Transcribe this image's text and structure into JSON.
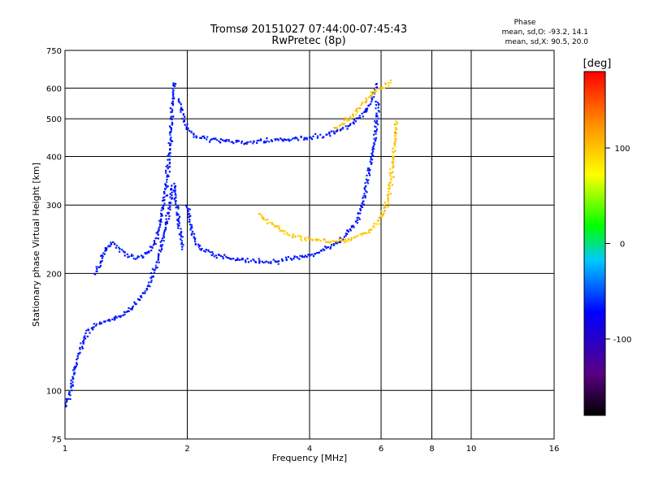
{
  "chart_data": {
    "type": "scatter",
    "title": "Tromsø 20151027 07:44:00-07:45:43",
    "subtitle": "RwPretec (8p)",
    "xlabel": "Frequency [MHz]",
    "ylabel": "Stationary phase Virtual Height [km]",
    "x_scale": "log",
    "y_scale": "log",
    "xlim": [
      1,
      16
    ],
    "ylim": [
      75,
      750
    ],
    "x_ticks": [
      1,
      2,
      4,
      6,
      8,
      10,
      16
    ],
    "y_ticks": [
      75,
      100,
      200,
      300,
      400,
      500,
      600,
      750
    ],
    "grid": true,
    "phase_box": {
      "title": "Phase",
      "line1": "mean, sd,O: -93.2, 14.1",
      "line2": "mean, sd,X:  90.5, 20.0"
    },
    "colorbar": {
      "label": "[deg]",
      "ticks": [
        "100",
        "0",
        "-100"
      ],
      "tick_values": [
        100,
        0,
        -100
      ],
      "range": [
        -180,
        180
      ],
      "colors": [
        "#000000",
        "#5a0082",
        "#0000ff",
        "#00c8ff",
        "#00ff00",
        "#ffff00",
        "#ff8c00",
        "#ff0000"
      ]
    },
    "series": [
      {
        "name": "O",
        "mean_deg": -93.2,
        "sd_deg": 14.1,
        "traces": [
          {
            "x": [
              1.18,
              1.22,
              1.25,
              1.3,
              1.35,
              1.4,
              1.45,
              1.5,
              1.55,
              1.6,
              1.65,
              1.7,
              1.75,
              1.8,
              1.84,
              1.86
            ],
            "y": [
              200,
              210,
              230,
              240,
              232,
              225,
              222,
              220,
              222,
              226,
              235,
              260,
              300,
              380,
              550,
              630
            ]
          },
          {
            "x": [
              1.9,
              2.0,
              2.1,
              2.2,
              2.4,
              2.6,
              2.8,
              3.0,
              3.2,
              3.4,
              3.6,
              3.8,
              4.0,
              4.4,
              4.8,
              5.0,
              5.2,
              5.4,
              5.6,
              5.8,
              5.85
            ],
            "y": [
              560,
              470,
              450,
              445,
              440,
              438,
              435,
              437,
              440,
              442,
              443,
              445,
              447,
              455,
              470,
              480,
              495,
              510,
              540,
              600,
              620
            ]
          },
          {
            "x": [
              2.0,
              2.05,
              2.1,
              2.2,
              2.4,
              2.6,
              2.8,
              3.0,
              3.2,
              3.4,
              3.6,
              3.8,
              4.0,
              4.2,
              4.4,
              4.6,
              4.8,
              5.0,
              5.2,
              5.4,
              5.6,
              5.8,
              5.9
            ],
            "y": [
              300,
              260,
              240,
              230,
              222,
              218,
              216,
              215,
              215,
              216,
              218,
              220,
              223,
              227,
              232,
              238,
              245,
              255,
              270,
              300,
              360,
              450,
              560
            ]
          },
          {
            "x": [
              1.0,
              1.03,
              1.06,
              1.1,
              1.13,
              1.16,
              1.2,
              1.25,
              1.3,
              1.35,
              1.4,
              1.45,
              1.5,
              1.55,
              1.6,
              1.65,
              1.7,
              1.75,
              1.8,
              1.85,
              1.9,
              1.95
            ],
            "y": [
              90,
              100,
              115,
              130,
              140,
              145,
              148,
              150,
              152,
              155,
              158,
              162,
              168,
              175,
              185,
              200,
              220,
              250,
              290,
              340,
              280,
              230
            ]
          }
        ]
      },
      {
        "name": "X",
        "mean_deg": 90.5,
        "sd_deg": 20.0,
        "traces": [
          {
            "x": [
              3.0,
              3.2,
              3.4,
              3.6,
              3.8,
              4.0,
              4.2,
              4.4,
              4.6,
              4.8,
              5.0,
              5.2,
              5.4,
              5.6,
              5.8,
              6.0,
              6.2,
              6.3,
              6.4,
              6.5,
              6.55
            ],
            "y": [
              285,
              270,
              260,
              252,
              247,
              245,
              243,
              242,
              242,
              243,
              245,
              248,
              252,
              258,
              265,
              280,
              300,
              330,
              380,
              450,
              500
            ]
          },
          {
            "x": [
              4.6,
              4.8,
              5.0,
              5.2,
              5.4,
              5.6,
              5.8,
              6.0,
              6.2,
              6.4
            ],
            "y": [
              470,
              485,
              500,
              520,
              545,
              570,
              590,
              600,
              610,
              625
            ]
          }
        ]
      }
    ]
  }
}
